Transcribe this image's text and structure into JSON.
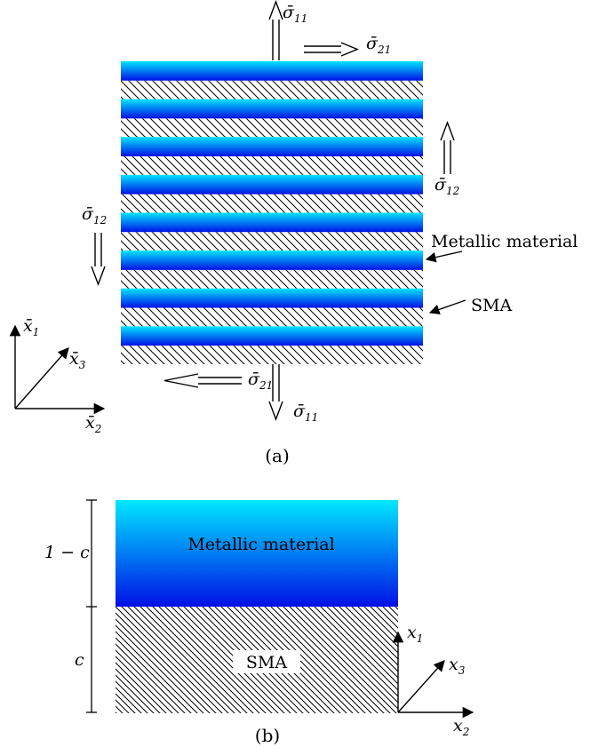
{
  "panel_a": {
    "caption": "(a)",
    "sigma11_top": {
      "sym": "σ̄",
      "sub": "11"
    },
    "sigma21_top": {
      "sym": "σ̄",
      "sub": "21"
    },
    "sigma12_right": {
      "sym": "σ̄",
      "sub": "12"
    },
    "sigma12_left": {
      "sym": "σ̄",
      "sub": "12"
    },
    "sigma21_bottom": {
      "sym": "σ̄",
      "sub": "21"
    },
    "sigma11_bottom": {
      "sym": "σ̄",
      "sub": "11"
    },
    "metallic_label": "Metallic material",
    "sma_label": "SMA",
    "axes": {
      "x1": {
        "sym": "x̄",
        "sub": "1"
      },
      "x2": {
        "sym": "x̄",
        "sub": "2"
      },
      "x3": {
        "sym": "x̄",
        "sub": "3"
      }
    },
    "layer_pairs": 8
  },
  "panel_b": {
    "caption": "(b)",
    "metallic_label": "Metallic material",
    "sma_label": "SMA",
    "dim_top": "1 − c",
    "dim_bottom": "c",
    "axes": {
      "x1": {
        "sym": "x",
        "sub": "1"
      },
      "x2": {
        "sym": "x",
        "sub": "2"
      },
      "x3": {
        "sym": "x",
        "sub": "3"
      }
    }
  },
  "colors": {
    "metal_light": "#00e5ff",
    "metal_dark": "#0010e6",
    "line": "#000000"
  }
}
